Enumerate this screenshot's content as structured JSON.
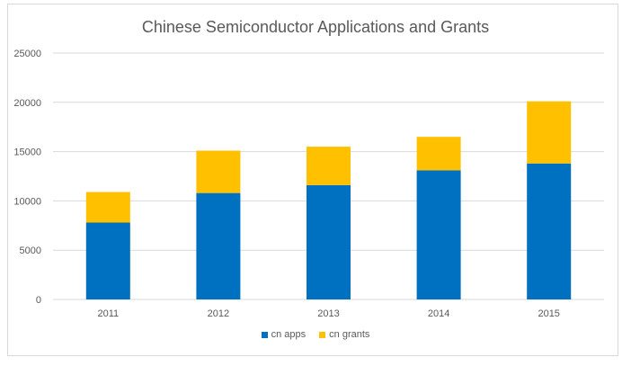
{
  "chart_data": {
    "type": "bar",
    "stacked": true,
    "title": "Chinese Semiconductor Applications and Grants",
    "xlabel": "",
    "ylabel": "",
    "categories": [
      "2011",
      "2012",
      "2013",
      "2014",
      "2015"
    ],
    "ylim": [
      0,
      25000
    ],
    "yticks": [
      0,
      5000,
      10000,
      15000,
      20000,
      25000
    ],
    "grid": true,
    "legend_position": "bottom",
    "series": [
      {
        "name": "cn apps",
        "color": "#0070c0",
        "values": [
          7800,
          10800,
          11600,
          13100,
          13800
        ]
      },
      {
        "name": "cn grants",
        "color": "#ffc000",
        "values": [
          3100,
          4300,
          3900,
          3400,
          6300
        ]
      }
    ]
  }
}
